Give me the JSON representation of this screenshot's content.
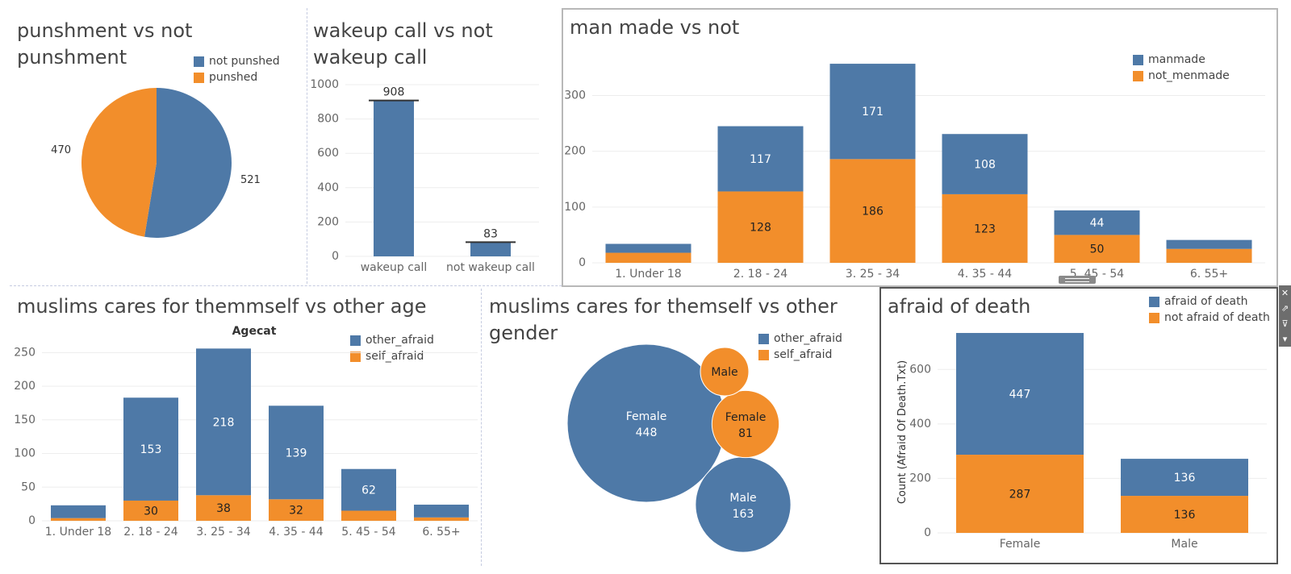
{
  "colors": {
    "blue": "#4e79a7",
    "orange": "#f28e2b"
  },
  "titles": {
    "pie": "punshment vs not punshment",
    "wakeup_line1": "wakeup call vs not",
    "wakeup_line2": "wakeup call",
    "manmade": "man made vs not",
    "age": "muslims cares for themmself vs other age",
    "gender_line1": "muslims cares for themself vs other",
    "gender_line2": "gender",
    "afraid": "afraid of death"
  },
  "toolbar": {
    "close": "✕",
    "open": "⇗",
    "filter": "⊽",
    "more": "▾"
  },
  "chart_data": [
    {
      "id": "pie",
      "type": "pie",
      "title": "punshment vs not punshment",
      "legend": [
        "not punshed",
        "punshed"
      ],
      "slices": [
        {
          "name": "not punshed",
          "value": 521,
          "label": "521"
        },
        {
          "name": "punshed",
          "value": 470,
          "label": "470"
        }
      ]
    },
    {
      "id": "wakeup",
      "type": "bar",
      "title": "wakeup call vs not wakeup call",
      "categories": [
        "wakeup call",
        "not wakeup call"
      ],
      "values": [
        908,
        83
      ],
      "labels": [
        "908",
        "83"
      ],
      "ylim": [
        0,
        1000
      ],
      "yticks": [
        "1000",
        "800",
        "600",
        "400",
        "200",
        "0"
      ]
    },
    {
      "id": "manmade",
      "type": "bar",
      "stacked": true,
      "title": "man made vs not",
      "legend": [
        "manmade",
        "not_menmade"
      ],
      "categories": [
        "1. Under 18",
        "2. 18 - 24",
        "3. 25 - 34",
        "4. 35 - 44",
        "5. 45 - 54",
        "6. 55+"
      ],
      "series": [
        {
          "name": "not_menmade",
          "values": [
            18,
            128,
            186,
            123,
            50,
            25
          ],
          "labels": [
            "",
            "128",
            "186",
            "123",
            "50",
            ""
          ]
        },
        {
          "name": "manmade",
          "values": [
            16,
            117,
            171,
            108,
            44,
            16
          ],
          "labels": [
            "",
            "117",
            "171",
            "108",
            "44",
            ""
          ]
        }
      ],
      "ylim": [
        0,
        360
      ],
      "yticks": [
        "300",
        "200",
        "100",
        "0"
      ]
    },
    {
      "id": "age",
      "type": "bar",
      "stacked": true,
      "title": "muslims cares for themmself vs other age",
      "subtitle": "Agecat",
      "legend": [
        "other_afraid",
        "self_afraid"
      ],
      "categories": [
        "1. Under 18",
        "2. 18 - 24",
        "3. 25 - 34",
        "4. 35 - 44",
        "5. 45 - 54",
        "6. 55+"
      ],
      "series": [
        {
          "name": "self_afraid",
          "values": [
            4,
            30,
            38,
            32,
            15,
            5
          ],
          "labels": [
            "",
            "30",
            "38",
            "32",
            "",
            ""
          ]
        },
        {
          "name": "other_afraid",
          "values": [
            19,
            153,
            218,
            139,
            62,
            19
          ],
          "labels": [
            "",
            "153",
            "218",
            "139",
            "62",
            ""
          ]
        }
      ],
      "ylim": [
        0,
        260
      ],
      "yticks": [
        "250",
        "200",
        "150",
        "100",
        "50",
        "0"
      ]
    },
    {
      "id": "gender",
      "type": "bubble",
      "title": "muslims cares for themself vs other gender",
      "legend": [
        "other_afraid",
        "self_afraid"
      ],
      "bubbles": [
        {
          "label": "Female",
          "value": 448,
          "text": "448",
          "series": "other_afraid"
        },
        {
          "label": "Male",
          "value": 163,
          "text": "163",
          "series": "other_afraid"
        },
        {
          "label": "Female",
          "value": 81,
          "text": "81",
          "series": "self_afraid"
        },
        {
          "label": "Male",
          "value": null,
          "text": "",
          "series": "self_afraid"
        }
      ]
    },
    {
      "id": "afraid",
      "type": "bar",
      "stacked": true,
      "title": "afraid of death",
      "ylabel": "Count (Afraid Of Death.Txt)",
      "legend": [
        "afraid of death",
        "not afraid of death"
      ],
      "categories": [
        "Female",
        "Male"
      ],
      "series": [
        {
          "name": "not afraid of death",
          "values": [
            287,
            136
          ],
          "labels": [
            "287",
            "136"
          ]
        },
        {
          "name": "afraid of death",
          "values": [
            447,
            136
          ],
          "labels": [
            "447",
            "136"
          ]
        }
      ],
      "ylim": [
        0,
        740
      ],
      "yticks": [
        "600",
        "400",
        "200",
        "0"
      ]
    }
  ]
}
